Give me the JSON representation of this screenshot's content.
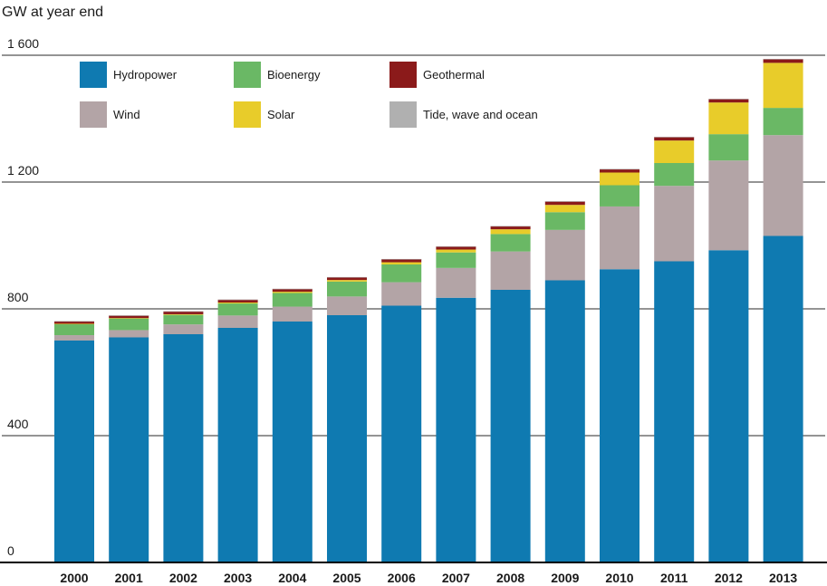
{
  "chart_data": {
    "type": "bar",
    "stacked": true,
    "title": "",
    "ylabel": "GW at year end",
    "xlabel": "",
    "ylim": [
      0,
      1600
    ],
    "yticks": [
      0,
      400,
      800,
      1200,
      1600
    ],
    "ytick_labels": [
      "0",
      "400",
      "800",
      "1 200",
      "1 600"
    ],
    "grid": true,
    "legend_placement": "top-left",
    "categories": [
      "2000",
      "2001",
      "2002",
      "2003",
      "2004",
      "2005",
      "2006",
      "2007",
      "2008",
      "2009",
      "2010",
      "2011",
      "2012",
      "2013"
    ],
    "series": [
      {
        "name": "Hydropower",
        "color": "#0f7ab1",
        "values": [
          700,
          710,
          720,
          740,
          760,
          780,
          810,
          835,
          860,
          890,
          925,
          950,
          985,
          1030
        ]
      },
      {
        "name": "Wind",
        "color": "#b3a4a6",
        "values": [
          17,
          23,
          31,
          39,
          47,
          59,
          74,
          94,
          121,
          159,
          198,
          238,
          283,
          318
        ]
      },
      {
        "name": "Bioenergy",
        "color": "#6ab865",
        "values": [
          35,
          37,
          30,
          38,
          43,
          47,
          56,
          49,
          55,
          56,
          67,
          72,
          83,
          86
        ]
      },
      {
        "name": "Solar",
        "color": "#e8cc2a",
        "values": [
          1,
          1,
          2,
          3,
          4,
          5,
          7,
          9,
          15,
          23,
          40,
          71,
          100,
          142
        ]
      },
      {
        "name": "Geothermal",
        "color": "#8b1a1a",
        "values": [
          8,
          8,
          9,
          9,
          9,
          9,
          10,
          10,
          10,
          11,
          11,
          11,
          11,
          12
        ]
      },
      {
        "name": "Tide, wave and ocean",
        "color": "#b0b0b0",
        "values": [
          0.3,
          0.3,
          0.3,
          0.3,
          0.3,
          0.3,
          0.3,
          0.3,
          0.3,
          0.3,
          0.3,
          0.5,
          0.5,
          0.5
        ]
      }
    ]
  }
}
